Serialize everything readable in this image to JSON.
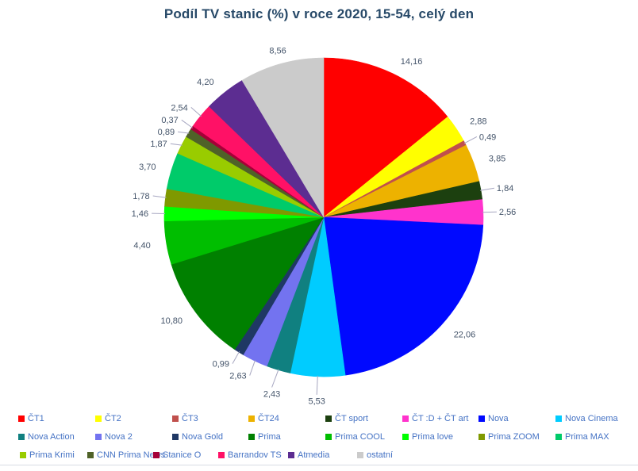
{
  "chart_data": {
    "type": "pie",
    "title": "Podíl TV stanic (%) v roce 2020, 15-54, celý den",
    "unit": "%",
    "decimal_separator": ",",
    "start_angle": "top",
    "direction": "clockwise",
    "legend_position": "bottom",
    "slices": [
      {
        "label": "ČT1",
        "value": 14.16,
        "display": "14,16",
        "color": "#FF0000"
      },
      {
        "label": "ČT2",
        "value": 2.88,
        "display": "2,88",
        "color": "#FFFF00"
      },
      {
        "label": "ČT3",
        "value": 0.49,
        "display": "0,49",
        "color": "#C0504D"
      },
      {
        "label": "ČT24",
        "value": 3.85,
        "display": "3,85",
        "color": "#EDB200"
      },
      {
        "label": "ČT sport",
        "value": 1.84,
        "display": "1,84",
        "color": "#1C400F"
      },
      {
        "label": "ČT :D + ČT art",
        "value": 2.56,
        "display": "2,56",
        "color": "#FF33CC"
      },
      {
        "label": "Nova",
        "value": 22.06,
        "display": "22,06",
        "color": "#0009FF"
      },
      {
        "label": "Nova Cinema",
        "value": 5.53,
        "display": "5,53",
        "color": "#00CCFF"
      },
      {
        "label": "Nova Action",
        "value": 2.43,
        "display": "2,43",
        "color": "#108080"
      },
      {
        "label": "Nova 2",
        "value": 2.63,
        "display": "2,63",
        "color": "#7373F0"
      },
      {
        "label": "Nova Gold",
        "value": 0.99,
        "display": "0,99",
        "color": "#1F3864"
      },
      {
        "label": "Prima",
        "value": 10.8,
        "display": "10,80",
        "color": "#008000"
      },
      {
        "label": "Prima COOL",
        "value": 4.4,
        "display": "4,40",
        "color": "#00BE00"
      },
      {
        "label": "Prima love",
        "value": 1.46,
        "display": "1,46",
        "color": "#00FF00"
      },
      {
        "label": "Prima ZOOM",
        "value": 1.78,
        "display": "1,78",
        "color": "#7F9900"
      },
      {
        "label": "Prima MAX",
        "value": 3.7,
        "display": "3,70",
        "color": "#00CB6A"
      },
      {
        "label": "Prima Krimi",
        "value": 1.87,
        "display": "1,87",
        "color": "#99CC00"
      },
      {
        "label": "CNN Prima News",
        "value": 0.89,
        "display": "0,89",
        "color": "#4F6228"
      },
      {
        "label": "Stanice O",
        "value": 0.37,
        "display": "0,37",
        "color": "#A50038"
      },
      {
        "label": "Barrandov TS",
        "value": 2.54,
        "display": "2,54",
        "color": "#FF1166"
      },
      {
        "label": "Atmedia",
        "value": 4.2,
        "display": "4,20",
        "color": "#5C2D91"
      },
      {
        "label": "ostatní",
        "value": 8.56,
        "display": "8,56",
        "color": "#CBCBCB"
      }
    ],
    "legend_rows": [
      8,
      8,
      6
    ]
  },
  "colors": {
    "background": "#FFFFFF",
    "title_text": "#274968",
    "value_label": "#44546A",
    "legend_text": "#4472C4",
    "leader_line": "#A6A6C0",
    "divider": "#D8DCE4"
  }
}
